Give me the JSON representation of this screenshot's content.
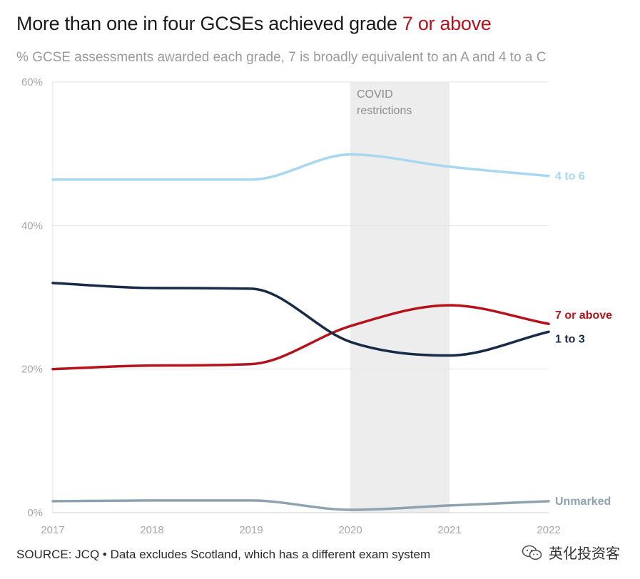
{
  "title": {
    "main": "More than one in four GCSEs achieved grade ",
    "highlight": "7 or above"
  },
  "subtitle": "% GCSE assessments awarded each grade, 7 is broadly equivalent to an A and 4 to a C",
  "footer": "SOURCE: JCQ • Data excludes Scotland, which has a different exam system",
  "watermark": {
    "text": "英化投资客",
    "icon": "wechat-icon"
  },
  "chart_data": {
    "type": "line",
    "title": "More than one in four GCSEs achieved grade 7 or above",
    "x": [
      2017,
      2018,
      2019,
      2020,
      2021,
      2022
    ],
    "x_tick_labels": [
      "2017",
      "2018",
      "2019",
      "2020",
      "2021",
      "2022"
    ],
    "ylim": [
      0,
      60
    ],
    "y_ticks": [
      0,
      20,
      40,
      60
    ],
    "y_tick_labels": [
      "0%",
      "20%",
      "40%",
      "60%"
    ],
    "grid": true,
    "shaded_region": {
      "x_start": 2020,
      "x_end": 2021,
      "label_lines": [
        "COVID",
        "restrictions"
      ],
      "color": "#ededed"
    },
    "series": [
      {
        "name": "4 to 6",
        "values": [
          46.4,
          46.4,
          46.4,
          49.9,
          48.2,
          46.9
        ],
        "color": "#a8d8ef"
      },
      {
        "name": "7 or above",
        "values": [
          20.0,
          20.5,
          20.7,
          26.0,
          28.9,
          26.3
        ],
        "color": "#b5121b"
      },
      {
        "name": "1 to 3",
        "values": [
          32.0,
          31.3,
          31.2,
          23.8,
          21.9,
          25.2
        ],
        "color": "#172a46"
      },
      {
        "name": "Unmarked",
        "values": [
          1.6,
          1.7,
          1.7,
          0.4,
          1.0,
          1.6
        ],
        "color": "#8fa2af"
      }
    ]
  }
}
